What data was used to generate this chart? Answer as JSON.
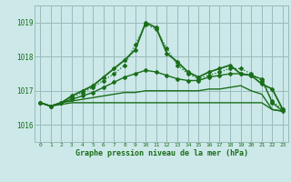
{
  "bg_color": "#cce8e8",
  "grid_color": "#99bbbb",
  "line_color": "#1a6e1a",
  "title": "Graphe pression niveau de la mer (hPa)",
  "xlim": [
    -0.5,
    23.5
  ],
  "ylim": [
    1015.5,
    1019.5
  ],
  "yticks": [
    1016,
    1017,
    1018,
    1019
  ],
  "xticks": [
    0,
    1,
    2,
    3,
    4,
    5,
    6,
    7,
    8,
    9,
    10,
    11,
    12,
    13,
    14,
    15,
    16,
    17,
    18,
    19,
    20,
    21,
    22,
    23
  ],
  "series": [
    {
      "x": [
        0,
        1,
        2,
        3,
        4,
        5,
        6,
        7,
        8,
        9,
        10,
        11,
        12,
        13,
        14,
        15,
        16,
        17,
        18,
        19,
        20,
        21,
        22,
        23
      ],
      "y": [
        1016.65,
        1016.55,
        1016.6,
        1016.65,
        1016.65,
        1016.65,
        1016.65,
        1016.65,
        1016.65,
        1016.65,
        1016.65,
        1016.65,
        1016.65,
        1016.65,
        1016.65,
        1016.65,
        1016.65,
        1016.65,
        1016.65,
        1016.65,
        1016.65,
        1016.65,
        1016.45,
        1016.4
      ],
      "style": "solid",
      "marker": null,
      "linewidth": 1.0
    },
    {
      "x": [
        0,
        1,
        2,
        3,
        4,
        5,
        6,
        7,
        8,
        9,
        10,
        11,
        12,
        13,
        14,
        15,
        16,
        17,
        18,
        19,
        20,
        21,
        22,
        23
      ],
      "y": [
        1016.65,
        1016.55,
        1016.65,
        1016.7,
        1016.75,
        1016.8,
        1016.85,
        1016.9,
        1016.95,
        1016.95,
        1017.0,
        1017.0,
        1017.0,
        1017.0,
        1017.0,
        1017.0,
        1017.05,
        1017.05,
        1017.1,
        1017.15,
        1017.0,
        1016.9,
        1016.45,
        1016.4
      ],
      "style": "solid",
      "marker": null,
      "linewidth": 1.0
    },
    {
      "x": [
        0,
        1,
        2,
        3,
        4,
        5,
        6,
        7,
        8,
        9,
        10,
        11,
        12,
        13,
        14,
        15,
        16,
        17,
        18,
        19,
        20,
        21,
        22,
        23
      ],
      "y": [
        1016.65,
        1016.55,
        1016.65,
        1016.75,
        1016.85,
        1016.95,
        1017.1,
        1017.25,
        1017.4,
        1017.5,
        1017.6,
        1017.55,
        1017.45,
        1017.35,
        1017.3,
        1017.3,
        1017.4,
        1017.45,
        1017.5,
        1017.5,
        1017.45,
        1017.35,
        1016.65,
        1016.4
      ],
      "style": "solid",
      "marker": "D",
      "markersize": 2.0,
      "linewidth": 1.0
    },
    {
      "x": [
        0,
        1,
        2,
        3,
        4,
        5,
        6,
        7,
        8,
        9,
        10,
        11,
        12,
        13,
        14,
        15,
        16,
        17,
        18,
        19,
        20,
        21,
        22,
        23
      ],
      "y": [
        1016.65,
        1016.55,
        1016.65,
        1016.8,
        1016.95,
        1017.1,
        1017.3,
        1017.5,
        1017.75,
        1018.35,
        1018.95,
        1018.8,
        1018.25,
        1017.75,
        1017.5,
        1017.35,
        1017.45,
        1017.55,
        1017.65,
        1017.65,
        1017.5,
        1017.3,
        1016.7,
        1016.45
      ],
      "style": "dotted",
      "marker": "D",
      "markersize": 2.0,
      "linewidth": 0.9
    },
    {
      "x": [
        0,
        1,
        2,
        3,
        4,
        5,
        6,
        7,
        8,
        9,
        10,
        11,
        12,
        13,
        14,
        15,
        16,
        17,
        18,
        19,
        20,
        21,
        22,
        23
      ],
      "y": [
        1016.65,
        1016.55,
        1016.65,
        1016.85,
        1017.0,
        1017.15,
        1017.4,
        1017.65,
        1017.9,
        1018.2,
        1019.0,
        1018.85,
        1018.1,
        1017.85,
        1017.55,
        1017.4,
        1017.55,
        1017.65,
        1017.75,
        1017.5,
        1017.45,
        1017.2,
        1017.05,
        1016.45
      ],
      "style": "solid",
      "marker": "D",
      "markersize": 2.0,
      "linewidth": 1.3
    }
  ]
}
